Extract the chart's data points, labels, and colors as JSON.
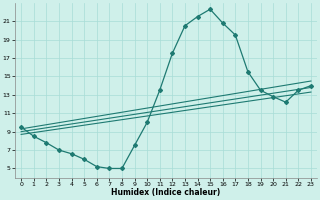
{
  "xlabel": "Humidex (Indice chaleur)",
  "xlim": [
    -0.5,
    23.5
  ],
  "ylim": [
    4,
    23
  ],
  "yticks": [
    5,
    7,
    9,
    11,
    13,
    15,
    17,
    19,
    21
  ],
  "xticks": [
    0,
    1,
    2,
    3,
    4,
    5,
    6,
    7,
    8,
    9,
    10,
    11,
    12,
    13,
    14,
    15,
    16,
    17,
    18,
    19,
    20,
    21,
    22,
    23
  ],
  "bg_color": "#cff0ea",
  "line_color": "#1e7a72",
  "grid_color": "#a8ddd7",
  "main_curve": {
    "x": [
      0,
      1,
      2,
      3,
      4,
      5,
      6,
      7,
      8,
      9,
      10,
      11,
      12,
      13,
      14,
      15,
      16,
      17,
      18,
      19,
      20,
      21,
      22,
      23
    ],
    "y": [
      9.5,
      8.5,
      7.8,
      7.0,
      6.6,
      6.0,
      5.2,
      5.0,
      5.0,
      7.5,
      10.0,
      13.5,
      17.5,
      20.5,
      21.5,
      22.3,
      20.8,
      19.5,
      15.5,
      13.5,
      12.8,
      12.2,
      13.5,
      14.0
    ]
  },
  "line1": {
    "x": [
      0,
      23
    ],
    "y": [
      9.3,
      14.5
    ]
  },
  "line2": {
    "x": [
      0,
      23
    ],
    "y": [
      9.0,
      13.8
    ]
  },
  "line3": {
    "x": [
      0,
      23
    ],
    "y": [
      8.7,
      13.3
    ]
  }
}
